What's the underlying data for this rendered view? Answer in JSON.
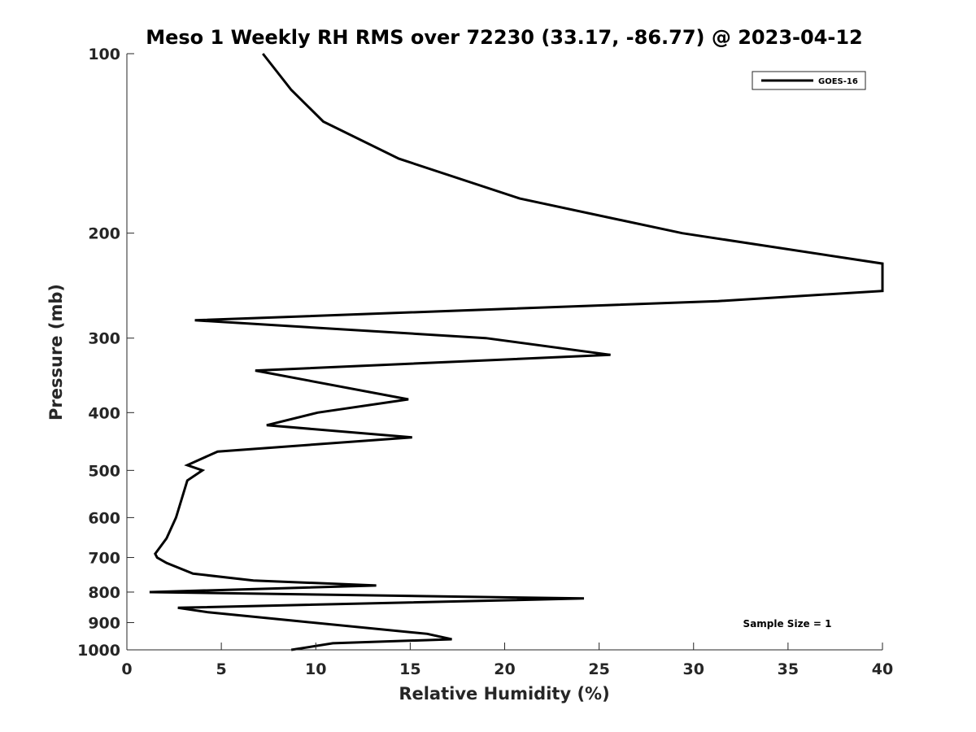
{
  "chart_data": {
    "type": "line",
    "title": "Meso 1 Weekly RH RMS over 72230 (33.17, -86.77) @ 2023-04-12",
    "xlabel": "Relative Humidity (%)",
    "ylabel": "Pressure (mb)",
    "xlim": [
      0,
      40
    ],
    "ylim": [
      100,
      1000
    ],
    "yscale": "log",
    "yreversed": true,
    "grid": false,
    "x_ticks": [
      0,
      5,
      10,
      15,
      20,
      25,
      30,
      35,
      40
    ],
    "x_tick_labels": [
      "0",
      "5",
      "10",
      "15",
      "20",
      "25",
      "30",
      "35",
      "40"
    ],
    "y_ticks": [
      100,
      200,
      300,
      400,
      500,
      600,
      700,
      800,
      900,
      1000
    ],
    "y_tick_labels": [
      "100",
      "200",
      "300",
      "400",
      "500",
      "600",
      "700",
      "800",
      "900",
      "1000"
    ],
    "legend_position": "top-right",
    "series": [
      {
        "name": "GOES-16",
        "color": "#000000",
        "x": [
          7.2,
          8.7,
          10.4,
          14.4,
          20.8,
          29.4,
          40.0,
          40.0,
          31.3,
          3.6,
          19.0,
          25.6,
          6.8,
          14.9,
          10.1,
          7.4,
          15.1,
          4.8,
          3.2,
          4.0,
          3.2,
          2.6,
          2.1,
          1.5,
          1.6,
          2.1,
          3.5,
          6.7,
          13.2,
          1.2,
          24.2,
          2.7,
          4.3,
          15.9,
          17.2,
          10.9,
          8.7
        ],
        "y": [
          100,
          115,
          130,
          150,
          175,
          200,
          225,
          250,
          260,
          280,
          300,
          320,
          340,
          380,
          400,
          420,
          440,
          465,
          490,
          500,
          520,
          600,
          650,
          690,
          700,
          715,
          745,
          765,
          780,
          800,
          820,
          850,
          865,
          940,
          960,
          975,
          1000
        ]
      }
    ],
    "annotations": [
      {
        "text": "Sample Size = 1",
        "position": "bottom-right"
      }
    ]
  }
}
